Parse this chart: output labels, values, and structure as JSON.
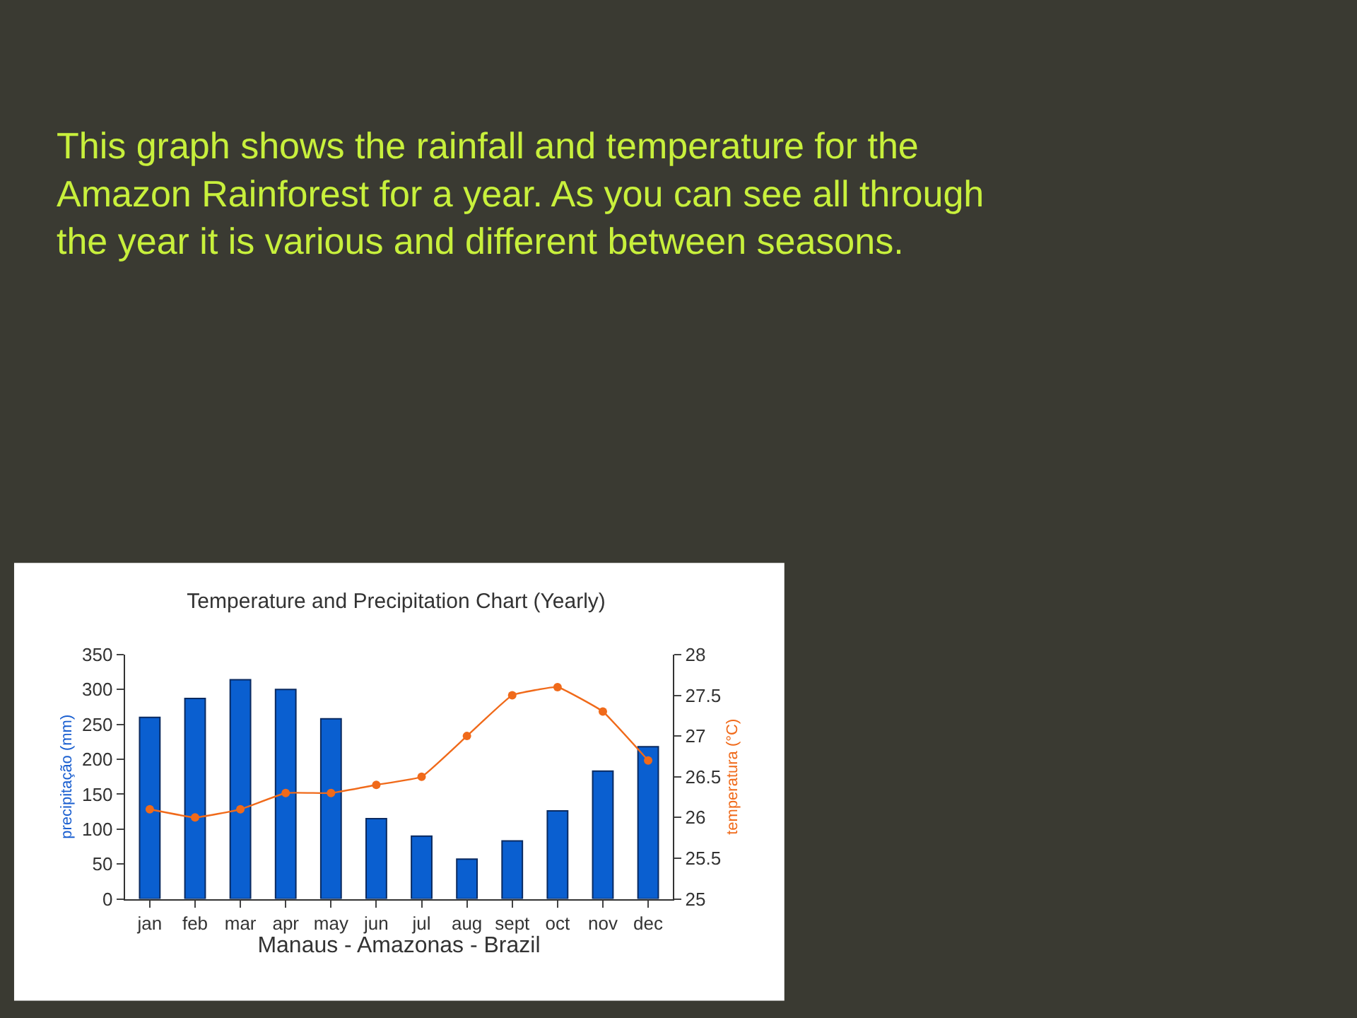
{
  "chart_data": {
    "type": "bar",
    "title": "Temperature and Precipitation Chart (Yearly)",
    "annotations": [
      "This graph shows the rainfall and temperature for the Amazon Rainforest for a year. As you can see all through the year it is various and different between seasons."
    ],
    "xlabel": "Manaus - Amazonas - Brazil",
    "ylabel": "precipitação (mm)",
    "y2label": "temperatura (°C)",
    "categories": [
      "jan",
      "feb",
      "mar",
      "apr",
      "may",
      "jun",
      "jul",
      "aug",
      "sept",
      "oct",
      "nov",
      "dec"
    ],
    "series": [
      {
        "color": "#0a5fd0",
        "values": [
          260,
          287,
          314,
          300,
          258,
          115,
          90,
          57,
          83,
          126,
          183,
          218
        ]
      },
      {
        "type": "line",
        "axis": "y2",
        "color": "#f06a1a",
        "marker": "circle",
        "values": [
          26.1,
          26.0,
          26.1,
          26.3,
          26.3,
          26.4,
          26.5,
          27.0,
          27.5,
          27.6,
          27.3,
          26.7
        ]
      }
    ],
    "ylim": [
      0,
      350
    ],
    "yticks": [
      0,
      50,
      100,
      150,
      200,
      250,
      300,
      350
    ],
    "y2lim": [
      25,
      28
    ],
    "y2ticks": [
      25,
      25.5,
      26,
      26.5,
      27,
      27.5,
      28
    ]
  }
}
